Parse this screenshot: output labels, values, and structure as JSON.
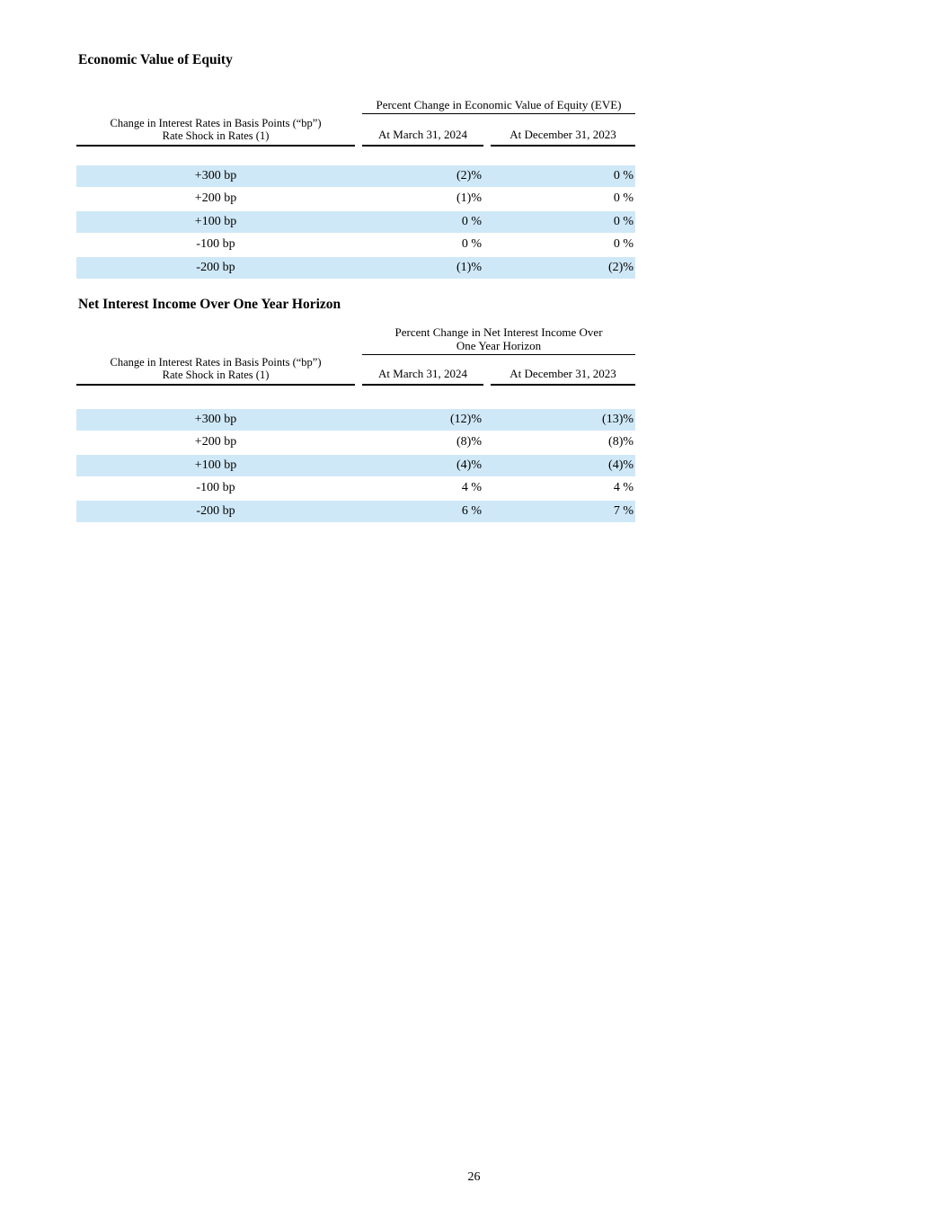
{
  "page_number": "26",
  "colors": {
    "row_highlight": "#cfe8f7"
  },
  "table_eve": {
    "heading": "Economic Value of Equity",
    "group_header": "Percent Change in Economic Value of Equity (EVE)",
    "row_header": {
      "line1": "Change in Interest Rates in Basis Points (“bp”)",
      "line2": "Rate Shock in Rates (1)"
    },
    "columns": [
      "At March 31, 2024",
      "At December 31, 2023"
    ],
    "rows": [
      {
        "label": "+300 bp",
        "mar2024": "(2)%",
        "dec2023": "0 %"
      },
      {
        "label": "+200 bp",
        "mar2024": "(1)%",
        "dec2023": "0 %"
      },
      {
        "label": "+100 bp",
        "mar2024": "0 %",
        "dec2023": "0 %"
      },
      {
        "label": "-100 bp",
        "mar2024": "0 %",
        "dec2023": "0 %"
      },
      {
        "label": "-200 bp",
        "mar2024": "(1)%",
        "dec2023": "(2)%"
      }
    ]
  },
  "table_nii": {
    "heading": "Net Interest Income Over One Year Horizon",
    "group_header_line1": "Percent Change in Net Interest Income Over",
    "group_header_line2": "One Year Horizon",
    "row_header": {
      "line1": "Change in Interest Rates in Basis Points (“bp”)",
      "line2": "Rate Shock in Rates (1)"
    },
    "columns": [
      "At March 31, 2024",
      "At December 31, 2023"
    ],
    "rows": [
      {
        "label": "+300 bp",
        "mar2024": "(12)%",
        "dec2023": "(13)%"
      },
      {
        "label": "+200 bp",
        "mar2024": "(8)%",
        "dec2023": "(8)%"
      },
      {
        "label": "+100 bp",
        "mar2024": "(4)%",
        "dec2023": "(4)%"
      },
      {
        "label": "-100 bp",
        "mar2024": "4 %",
        "dec2023": "4 %"
      },
      {
        "label": "-200 bp",
        "mar2024": "6 %",
        "dec2023": "7 %"
      }
    ]
  }
}
